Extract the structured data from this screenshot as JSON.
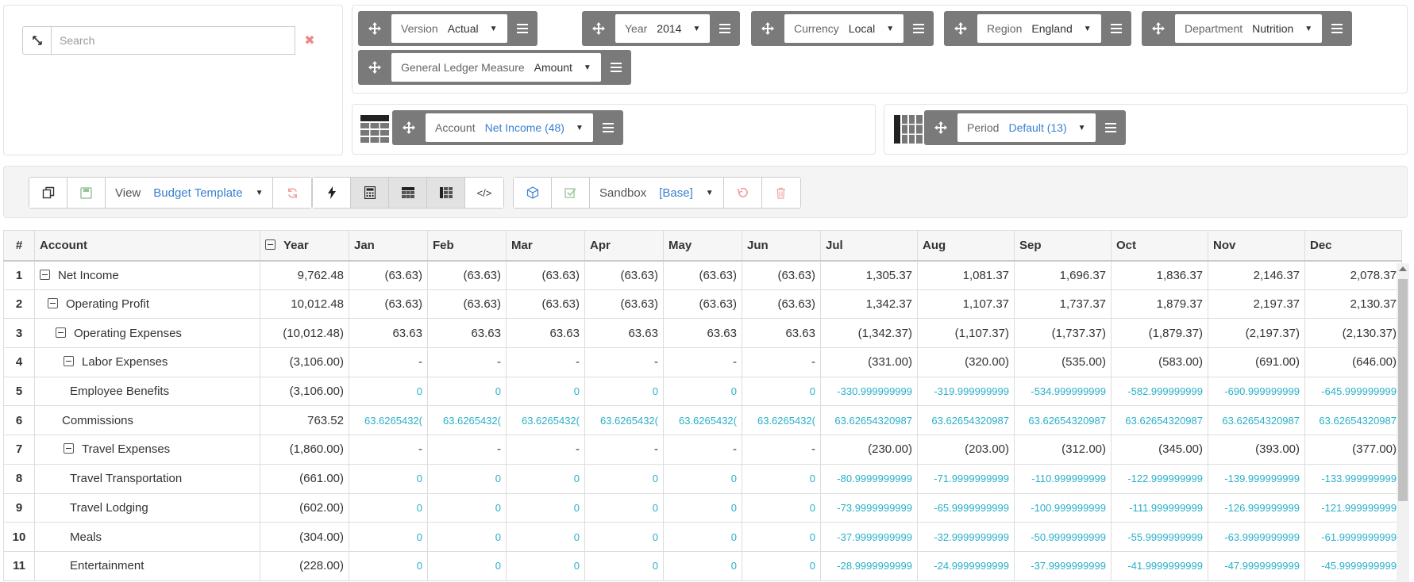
{
  "search": {
    "placeholder": "Search"
  },
  "icons": {
    "expand": "expand-icon",
    "clear": "times-icon",
    "move": "arrows-move-icon",
    "menu": "list-menu-icon",
    "copy": "copy-icon",
    "save": "save-icon",
    "refresh": "refresh-icon",
    "bolt": "bolt-icon",
    "calculator": "calculator-icon",
    "table": "table-icon",
    "pivot": "pivot-icon",
    "code": "code-icon",
    "cube": "cube-icon",
    "check": "check-square-icon",
    "undo": "undo-icon",
    "trash": "trash-icon"
  },
  "dimensions": {
    "context": [
      {
        "label": "Version",
        "value": "Actual"
      },
      {
        "label": "Year",
        "value": "2014"
      },
      {
        "label": "Currency",
        "value": "Local"
      },
      {
        "label": "Region",
        "value": "England"
      },
      {
        "label": "Department",
        "value": "Nutrition"
      },
      {
        "label": "General Ledger Measure",
        "value": "Amount"
      }
    ],
    "rows": [
      {
        "label": "Account",
        "value": "Net Income (48)"
      }
    ],
    "columns": [
      {
        "label": "Period",
        "value": "Default (13)"
      }
    ]
  },
  "toolbar": {
    "view_label": "View",
    "view_value": "Budget Template",
    "sandbox_label": "Sandbox",
    "sandbox_value": "[Base]",
    "code_glyph": "</>"
  },
  "colors": {
    "accent": "#3b7fd0",
    "input_value": "#2ab0c9",
    "chip_bg": "#7a7a7a"
  },
  "grid": {
    "headers": [
      "#",
      "Account",
      "Year",
      "Jan",
      "Feb",
      "Mar",
      "Apr",
      "May",
      "Jun",
      "Jul",
      "Aug",
      "Sep",
      "Oct",
      "Nov",
      "Dec"
    ],
    "rows": [
      {
        "n": "1",
        "account": "Net Income",
        "indent": 0,
        "toggle": true,
        "year": "9,762.48",
        "months": [
          "(63.63)",
          "(63.63)",
          "(63.63)",
          "(63.63)",
          "(63.63)",
          "(63.63)",
          "1,305.37",
          "1,081.37",
          "1,696.37",
          "1,836.37",
          "2,146.37",
          "2,078.37"
        ],
        "input": false
      },
      {
        "n": "2",
        "account": "Operating Profit",
        "indent": 1,
        "toggle": true,
        "year": "10,012.48",
        "months": [
          "(63.63)",
          "(63.63)",
          "(63.63)",
          "(63.63)",
          "(63.63)",
          "(63.63)",
          "1,342.37",
          "1,107.37",
          "1,737.37",
          "1,879.37",
          "2,197.37",
          "2,130.37"
        ],
        "input": false
      },
      {
        "n": "3",
        "account": "Operating Expenses",
        "indent": 2,
        "toggle": true,
        "year": "(10,012.48)",
        "months": [
          "63.63",
          "63.63",
          "63.63",
          "63.63",
          "63.63",
          "63.63",
          "(1,342.37)",
          "(1,107.37)",
          "(1,737.37)",
          "(1,879.37)",
          "(2,197.37)",
          "(2,130.37)"
        ],
        "input": false
      },
      {
        "n": "4",
        "account": "Labor Expenses",
        "indent": 3,
        "toggle": true,
        "year": "(3,106.00)",
        "months": [
          "-",
          "-",
          "-",
          "-",
          "-",
          "-",
          "(331.00)",
          "(320.00)",
          "(535.00)",
          "(583.00)",
          "(691.00)",
          "(646.00)"
        ],
        "input": false
      },
      {
        "n": "5",
        "account": "Employee Benefits",
        "indent": 4,
        "toggle": false,
        "year": "(3,106.00)",
        "months": [
          "0",
          "0",
          "0",
          "0",
          "0",
          "0",
          "-330.999999999",
          "-319.999999999",
          "-534.999999999",
          "-582.999999999",
          "-690.999999999",
          "-645.999999999"
        ],
        "input": true
      },
      {
        "n": "6",
        "account": "Commissions",
        "indent": 3.5,
        "toggle": false,
        "year": "763.52",
        "months": [
          "63.6265432(",
          "63.6265432(",
          "63.6265432(",
          "63.6265432(",
          "63.6265432(",
          "63.6265432(",
          "63.62654320987",
          "63.62654320987",
          "63.62654320987",
          "63.62654320987",
          "63.62654320987",
          "63.62654320987"
        ],
        "input": true
      },
      {
        "n": "7",
        "account": "Travel Expenses",
        "indent": 3,
        "toggle": true,
        "year": "(1,860.00)",
        "months": [
          "-",
          "-",
          "-",
          "-",
          "-",
          "-",
          "(230.00)",
          "(203.00)",
          "(312.00)",
          "(345.00)",
          "(393.00)",
          "(377.00)"
        ],
        "input": false
      },
      {
        "n": "8",
        "account": "Travel Transportation",
        "indent": 4,
        "toggle": false,
        "year": "(661.00)",
        "months": [
          "0",
          "0",
          "0",
          "0",
          "0",
          "0",
          "-80.9999999999",
          "-71.9999999999",
          "-110.999999999",
          "-122.999999999",
          "-139.999999999",
          "-133.999999999"
        ],
        "input": true
      },
      {
        "n": "9",
        "account": "Travel Lodging",
        "indent": 4,
        "toggle": false,
        "year": "(602.00)",
        "months": [
          "0",
          "0",
          "0",
          "0",
          "0",
          "0",
          "-73.9999999999",
          "-65.9999999999",
          "-100.999999999",
          "-111.999999999",
          "-126.999999999",
          "-121.999999999"
        ],
        "input": true
      },
      {
        "n": "10",
        "account": "Meals",
        "indent": 4,
        "toggle": false,
        "year": "(304.00)",
        "months": [
          "0",
          "0",
          "0",
          "0",
          "0",
          "0",
          "-37.9999999999",
          "-32.9999999999",
          "-50.9999999999",
          "-55.9999999999",
          "-63.9999999999",
          "-61.9999999999"
        ],
        "input": true
      },
      {
        "n": "11",
        "account": "Entertainment",
        "indent": 4,
        "toggle": false,
        "year": "(228.00)",
        "months": [
          "0",
          "0",
          "0",
          "0",
          "0",
          "0",
          "-28.9999999999",
          "-24.9999999999",
          "-37.9999999999",
          "-41.9999999999",
          "-47.9999999999",
          "-45.9999999999"
        ],
        "input": true
      }
    ]
  }
}
